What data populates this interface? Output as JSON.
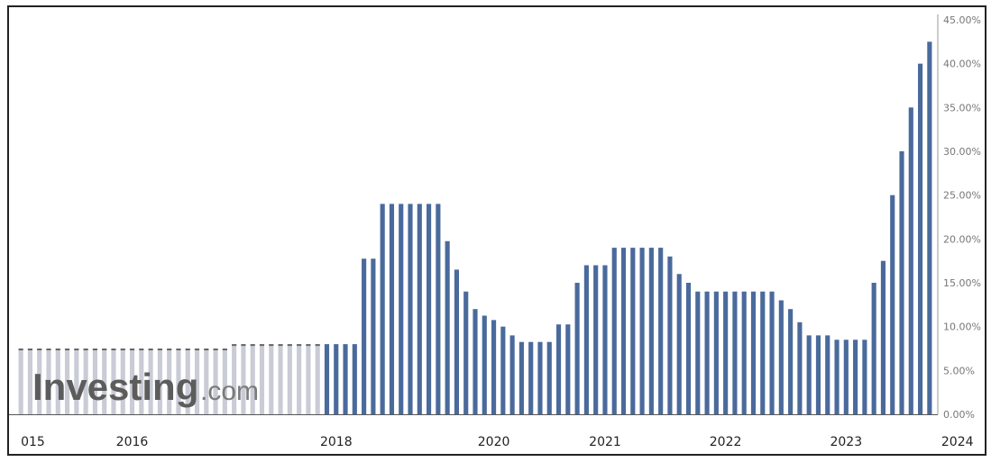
{
  "chart_data": {
    "type": "bar",
    "title": "",
    "xlabel": "",
    "ylabel": "",
    "ylim": [
      0,
      45
    ],
    "y_ticks": [
      "0.00%",
      "5.00%",
      "10.00%",
      "15.00%",
      "20.00%",
      "25.00%",
      "30.00%",
      "35.00%",
      "40.00%",
      "45.00%"
    ],
    "x_tick_labels": [
      {
        "label": "015",
        "index": 0
      },
      {
        "label": "2016",
        "index": 12
      },
      {
        "label": "2018",
        "index": 34
      },
      {
        "label": "2020",
        "index": 51
      },
      {
        "label": "2021",
        "index": 63
      },
      {
        "label": "2022",
        "index": 76
      },
      {
        "label": "2023",
        "index": 89
      },
      {
        "label": "2024",
        "index": 101
      }
    ],
    "y_axis_position": "right",
    "grid": false,
    "bar_color": "#4a6a9c",
    "faded_bar_color": "#c9ccd6",
    "values": [
      7.5,
      7.5,
      7.5,
      7.5,
      7.5,
      7.5,
      7.5,
      7.5,
      7.5,
      7.5,
      7.5,
      7.5,
      7.5,
      7.5,
      7.5,
      7.5,
      7.5,
      7.5,
      7.5,
      7.5,
      7.5,
      7.5,
      7.5,
      8.0,
      8.0,
      8.0,
      8.0,
      8.0,
      8.0,
      8.0,
      8.0,
      8.0,
      8.0,
      8.0,
      8.0,
      8.0,
      8.0,
      17.75,
      17.75,
      24.0,
      24.0,
      24.0,
      24.0,
      24.0,
      24.0,
      24.0,
      19.75,
      16.5,
      14.0,
      12.0,
      11.25,
      10.75,
      10.0,
      9.0,
      8.25,
      8.25,
      8.25,
      8.25,
      10.25,
      10.25,
      15.0,
      17.0,
      17.0,
      17.0,
      19.0,
      19.0,
      19.0,
      19.0,
      19.0,
      19.0,
      18.0,
      16.0,
      15.0,
      14.0,
      14.0,
      14.0,
      14.0,
      14.0,
      14.0,
      14.0,
      14.0,
      14.0,
      13.0,
      12.0,
      10.5,
      9.0,
      9.0,
      9.0,
      8.5,
      8.5,
      8.5,
      8.5,
      15.0,
      17.5,
      25.0,
      30.0,
      35.0,
      40.0,
      42.5
    ],
    "faded_until_index": 32
  },
  "watermark": {
    "brand": "Investing",
    "suffix": ".com"
  }
}
